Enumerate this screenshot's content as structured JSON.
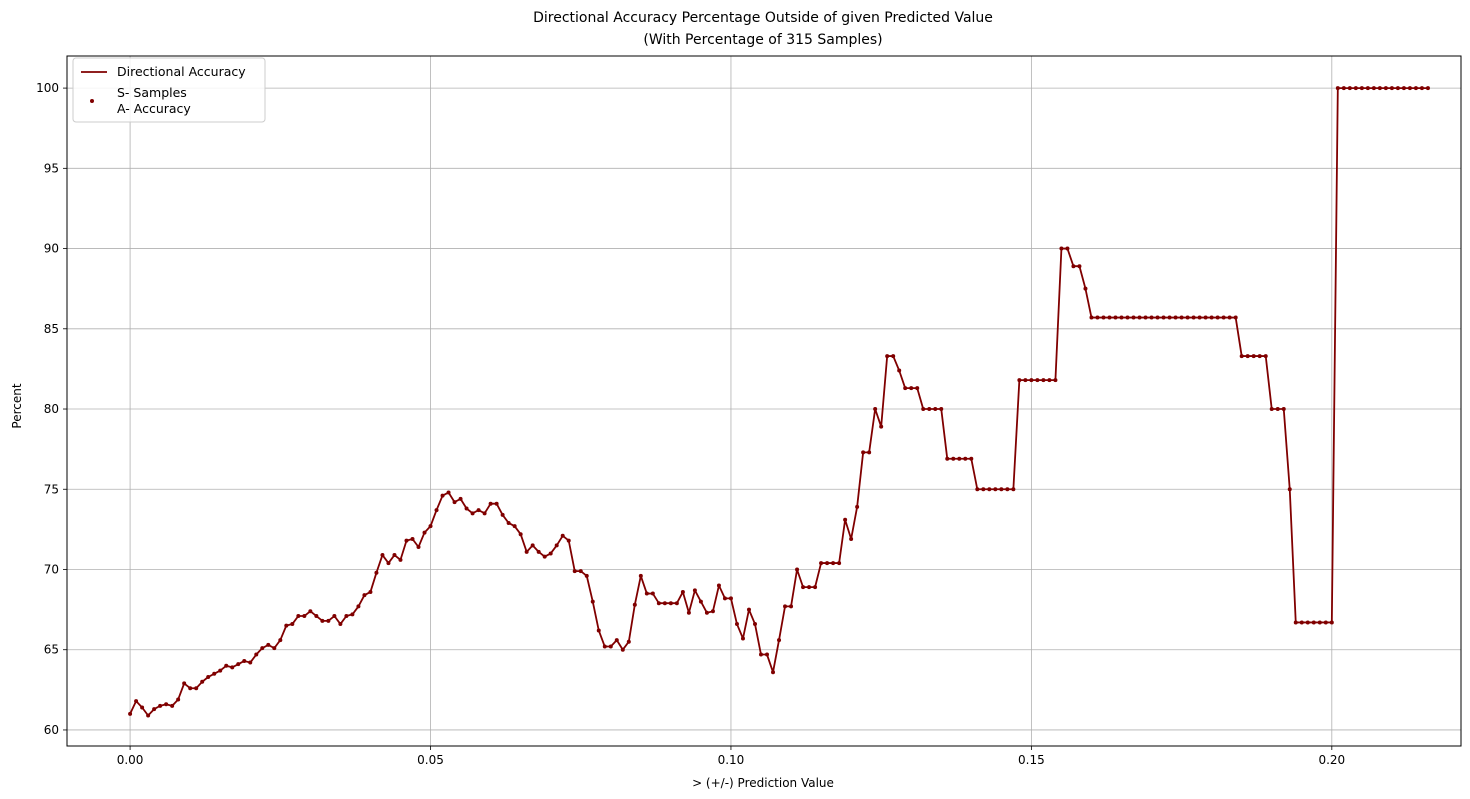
{
  "chart_data": {
    "type": "line",
    "title": "Directional Accuracy Percentage Outside of given Predicted Value",
    "subtitle": "(With Percentage of 315 Samples)",
    "xlabel": "> (+/-) Prediction Value",
    "ylabel": "Percent",
    "xlim": [
      -0.0105,
      0.2215
    ],
    "ylim": [
      59.0,
      102.0
    ],
    "xticks": [
      0.0,
      0.05,
      0.1,
      0.15,
      0.2
    ],
    "xtick_labels": [
      "0.00",
      "0.05",
      "0.10",
      "0.15",
      "0.20"
    ],
    "yticks": [
      60,
      65,
      70,
      75,
      80,
      85,
      90,
      95,
      100
    ],
    "ytick_labels": [
      "60",
      "65",
      "70",
      "75",
      "80",
      "85",
      "90",
      "95",
      "100"
    ],
    "grid": true,
    "legend_position": "upper-left",
    "legend": [
      "Directional Accuracy",
      "S- Samples",
      "A- Accuracy"
    ],
    "color": "#800000",
    "x_start": 0.0,
    "x_step": 0.001,
    "series": [
      {
        "name": "Directional Accuracy",
        "values": [
          61.0,
          61.8,
          61.4,
          60.9,
          61.3,
          61.5,
          61.6,
          61.5,
          61.9,
          62.9,
          62.6,
          62.6,
          63.0,
          63.3,
          63.5,
          63.7,
          64.0,
          63.9,
          64.1,
          64.3,
          64.2,
          64.7,
          65.1,
          65.3,
          65.1,
          65.6,
          66.5,
          66.6,
          67.1,
          67.1,
          67.4,
          67.1,
          66.8,
          66.8,
          67.1,
          66.6,
          67.1,
          67.2,
          67.7,
          68.4,
          68.6,
          69.8,
          70.9,
          70.4,
          70.9,
          70.6,
          71.8,
          71.9,
          71.4,
          72.3,
          72.7,
          73.7,
          74.6,
          74.8,
          74.2,
          74.4,
          73.8,
          73.5,
          73.7,
          73.5,
          74.1,
          74.1,
          73.4,
          72.9,
          72.7,
          72.2,
          71.1,
          71.5,
          71.1,
          70.8,
          71.0,
          71.5,
          72.1,
          71.8,
          69.9,
          69.9,
          69.6,
          68.0,
          66.2,
          65.2,
          65.2,
          65.6,
          65.0,
          65.5,
          67.8,
          69.6,
          68.5,
          68.5,
          67.9,
          67.9,
          67.9,
          67.9,
          68.6,
          67.3,
          68.7,
          68.0,
          67.3,
          67.4,
          69.0,
          68.2,
          68.2,
          66.6,
          65.7,
          67.5,
          66.6,
          64.7,
          64.7,
          63.6,
          65.6,
          67.7,
          67.7,
          70.0,
          68.9,
          68.9,
          68.9,
          70.4,
          70.4,
          70.4,
          70.4,
          73.1,
          71.9,
          73.9,
          77.3,
          77.3,
          80.0,
          78.9,
          83.3,
          83.3,
          82.4,
          81.3,
          81.3,
          81.3,
          80.0,
          80.0,
          80.0,
          80.0,
          76.9,
          76.9,
          76.9,
          76.9,
          76.9,
          75.0,
          75.0,
          75.0,
          75.0,
          75.0,
          75.0,
          75.0,
          81.8,
          81.8,
          81.8,
          81.8,
          81.8,
          81.8,
          81.8,
          90.0,
          90.0,
          88.9,
          88.9,
          87.5,
          85.7,
          85.7,
          85.7,
          85.7,
          85.7,
          85.7,
          85.7,
          85.7,
          85.7,
          85.7,
          85.7,
          85.7,
          85.7,
          85.7,
          85.7,
          85.7,
          85.7,
          85.7,
          85.7,
          85.7,
          85.7,
          85.7,
          85.7,
          85.7,
          85.7,
          83.3,
          83.3,
          83.3,
          83.3,
          83.3,
          80.0,
          80.0,
          80.0,
          75.0,
          66.7,
          66.7,
          66.7,
          66.7,
          66.7,
          66.7,
          66.7,
          100.0,
          100.0,
          100.0,
          100.0,
          100.0,
          100.0,
          100.0,
          100.0,
          100.0,
          100.0,
          100.0,
          100.0,
          100.0,
          100.0,
          100.0,
          100.0
        ]
      }
    ]
  }
}
